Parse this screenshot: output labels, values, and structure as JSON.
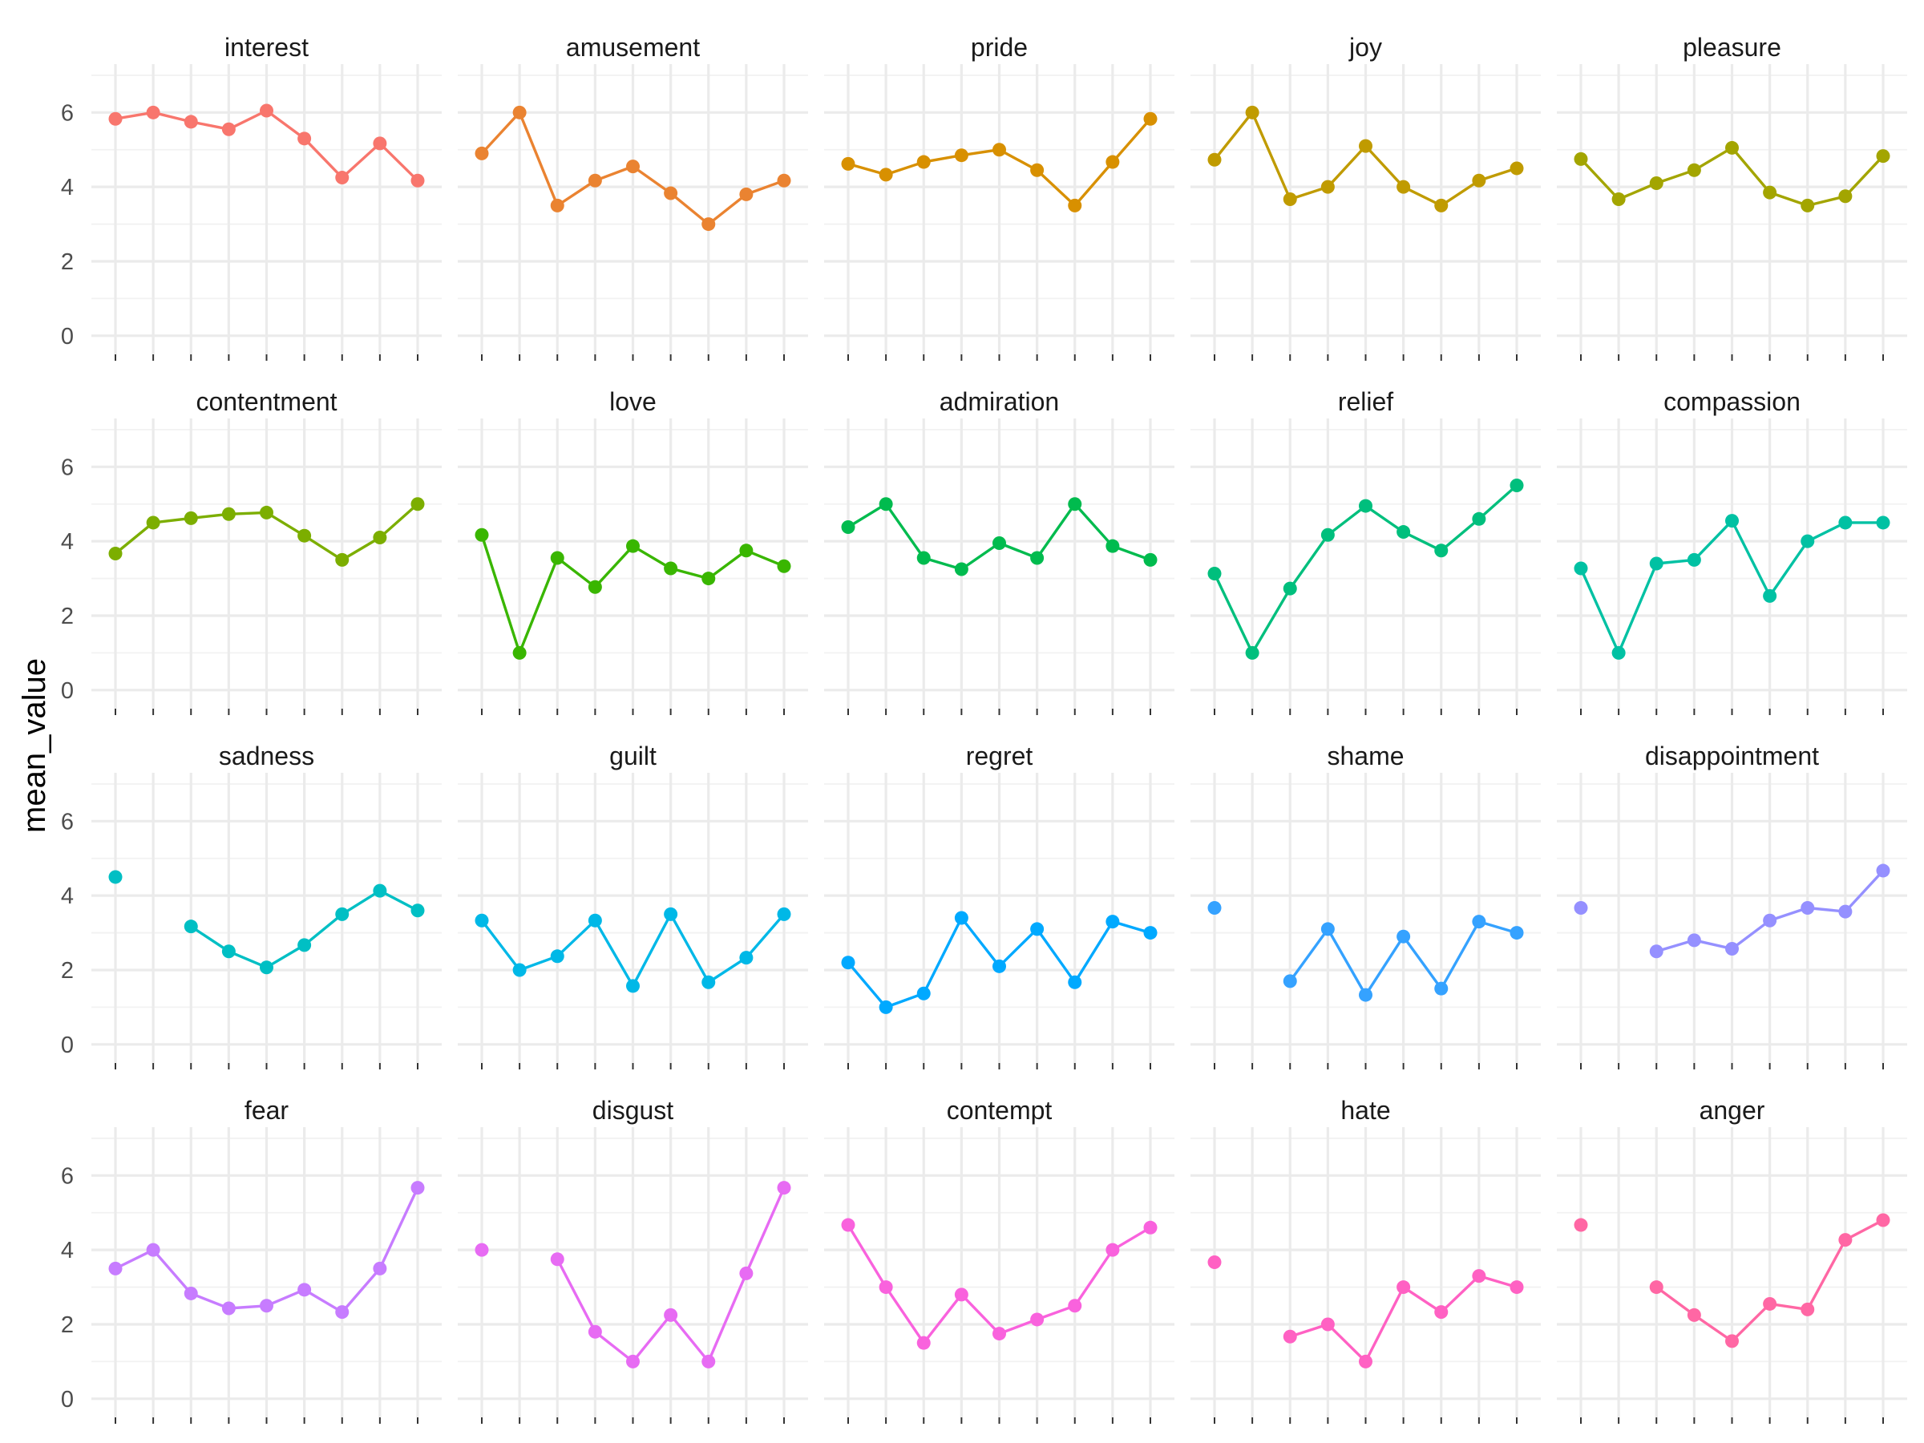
{
  "chart_data": {
    "type": "line",
    "facet": "small multiples by emotion",
    "xlabel": "",
    "ylabel": "mean_value",
    "ylim": [
      -0.5,
      7.3
    ],
    "y_ticks": [
      0,
      2,
      4,
      6
    ],
    "x_points": 9,
    "x_tick_labels": "none",
    "grid": true,
    "legend": "none",
    "series": [
      {
        "name": "interest",
        "color": "#F8766D",
        "values": [
          5.83,
          6.0,
          5.75,
          5.55,
          6.05,
          5.3,
          4.25,
          5.17,
          4.17
        ]
      },
      {
        "name": "amusement",
        "color": "#EA8331",
        "values": [
          4.9,
          6.0,
          3.5,
          4.17,
          4.55,
          3.83,
          3.0,
          3.8,
          4.17
        ]
      },
      {
        "name": "pride",
        "color": "#D89000",
        "values": [
          4.62,
          4.33,
          4.67,
          4.85,
          5.0,
          4.45,
          3.5,
          4.67,
          5.83
        ]
      },
      {
        "name": "joy",
        "color": "#C09B00",
        "values": [
          4.73,
          6.0,
          3.67,
          4.0,
          5.1,
          4.0,
          3.5,
          4.17,
          4.5
        ]
      },
      {
        "name": "pleasure",
        "color": "#A3A500",
        "values": [
          4.75,
          3.67,
          4.1,
          4.45,
          5.05,
          3.85,
          3.5,
          3.75,
          4.83
        ]
      },
      {
        "name": "contentment",
        "color": "#7CAE00",
        "values": [
          3.67,
          4.5,
          4.62,
          4.73,
          4.77,
          4.15,
          3.5,
          4.1,
          5.0
        ]
      },
      {
        "name": "love",
        "color": "#39B600",
        "values": [
          4.17,
          1.0,
          3.55,
          2.77,
          3.87,
          3.27,
          3.0,
          3.75,
          3.33
        ]
      },
      {
        "name": "admiration",
        "color": "#00BB4E",
        "values": [
          4.38,
          5.0,
          3.55,
          3.25,
          3.95,
          3.55,
          5.0,
          3.87,
          3.5
        ]
      },
      {
        "name": "relief",
        "color": "#00BF7D",
        "values": [
          3.13,
          1.0,
          2.73,
          4.17,
          4.95,
          4.25,
          3.75,
          4.6,
          5.5
        ]
      },
      {
        "name": "compassion",
        "color": "#00C1A3",
        "values": [
          3.27,
          1.0,
          3.4,
          3.5,
          4.55,
          2.53,
          4.0,
          4.5,
          4.5
        ]
      },
      {
        "name": "sadness",
        "color": "#00BFC4",
        "values": [
          4.5,
          null,
          3.17,
          2.5,
          2.07,
          2.67,
          3.5,
          4.13,
          3.6
        ]
      },
      {
        "name": "guilt",
        "color": "#00B8E7",
        "values": [
          3.33,
          2.0,
          2.37,
          3.33,
          1.57,
          3.5,
          1.67,
          2.33,
          3.5
        ]
      },
      {
        "name": "regret",
        "color": "#00A9FF",
        "values": [
          2.2,
          1.0,
          1.37,
          3.4,
          2.1,
          3.1,
          1.67,
          3.3,
          3.0
        ]
      },
      {
        "name": "shame",
        "color": "#35A2FF",
        "values": [
          3.67,
          null,
          1.7,
          3.1,
          1.33,
          2.9,
          1.5,
          3.3,
          3.0
        ]
      },
      {
        "name": "disappointment",
        "color": "#9590FF",
        "values": [
          3.67,
          null,
          2.5,
          2.8,
          2.57,
          3.33,
          3.67,
          3.57,
          4.67
        ]
      },
      {
        "name": "fear",
        "color": "#C77CFF",
        "values": [
          3.5,
          4.0,
          2.83,
          2.43,
          2.5,
          2.93,
          2.33,
          3.5,
          5.67
        ]
      },
      {
        "name": "disgust",
        "color": "#E76BF3",
        "values": [
          4.0,
          null,
          3.75,
          1.8,
          1.0,
          2.25,
          1.0,
          3.37,
          5.67
        ]
      },
      {
        "name": "contempt",
        "color": "#F962DD",
        "values": [
          4.67,
          3.0,
          1.5,
          2.8,
          1.75,
          2.13,
          2.5,
          4.0,
          4.6
        ]
      },
      {
        "name": "hate",
        "color": "#FF61C3",
        "values": [
          3.67,
          null,
          1.67,
          2.0,
          1.0,
          3.0,
          2.33,
          3.3,
          3.0
        ]
      },
      {
        "name": "anger",
        "color": "#FF67A4",
        "values": [
          4.67,
          null,
          3.0,
          2.25,
          1.55,
          2.55,
          2.4,
          4.27,
          4.8
        ]
      }
    ]
  }
}
